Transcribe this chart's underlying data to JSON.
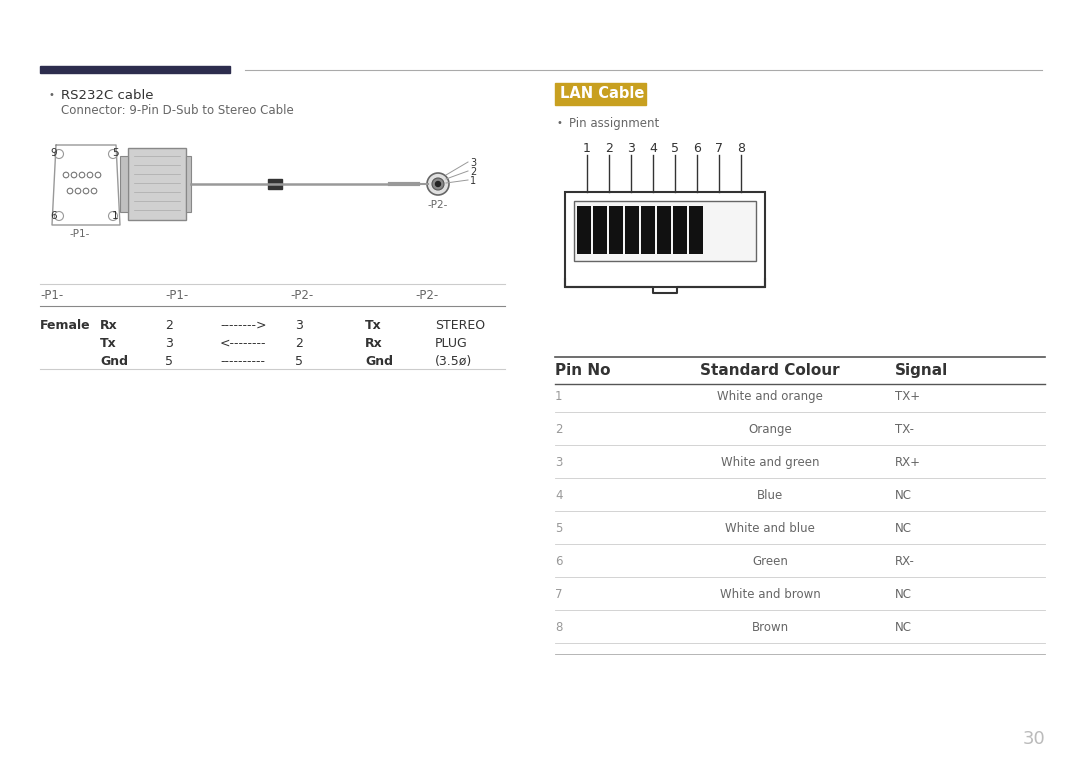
{
  "bg_color": "#ffffff",
  "page_number": "30",
  "left_divider_color": "#2d2d4e",
  "right_divider_color": "#aaaaaa",
  "rs232c_title": "RS232C cable",
  "rs232c_subtitle": "Connector: 9-Pin D-Sub to Stereo Cable",
  "lan_title": "LAN Cable",
  "lan_title_bg": "#c8a020",
  "lan_title_color": "#ffffff",
  "pin_assignment_label": "Pin assignment",
  "pin_numbers": [
    "1",
    "2",
    "3",
    "4",
    "5",
    "6",
    "7",
    "8"
  ],
  "lan_table_headers": [
    "Pin No",
    "Standard Colour",
    "Signal"
  ],
  "lan_table_data": [
    [
      "1",
      "White and orange",
      "TX+"
    ],
    [
      "2",
      "Orange",
      "TX-"
    ],
    [
      "3",
      "White and green",
      "RX+"
    ],
    [
      "4",
      "Blue",
      "NC"
    ],
    [
      "5",
      "White and blue",
      "NC"
    ],
    [
      "6",
      "Green",
      "RX-"
    ],
    [
      "7",
      "White and brown",
      "NC"
    ],
    [
      "8",
      "Brown",
      "NC"
    ]
  ],
  "text_color_dark": "#333333",
  "text_color_mid": "#666666",
  "text_color_light": "#999999",
  "line_color_light": "#cccccc",
  "line_color_dark": "#444444",
  "connector_color": "#999999",
  "connector_dark": "#555555",
  "cable_rows": [
    [
      "Female",
      "Rx",
      "2",
      "-------->",
      "3",
      "Tx",
      "STEREO"
    ],
    [
      "",
      "Tx",
      "3",
      "<--------",
      "2",
      "Rx",
      "PLUG"
    ],
    [
      "",
      "Gnd",
      "5",
      "----------",
      "5",
      "Gnd",
      "(3.5ø)"
    ]
  ]
}
